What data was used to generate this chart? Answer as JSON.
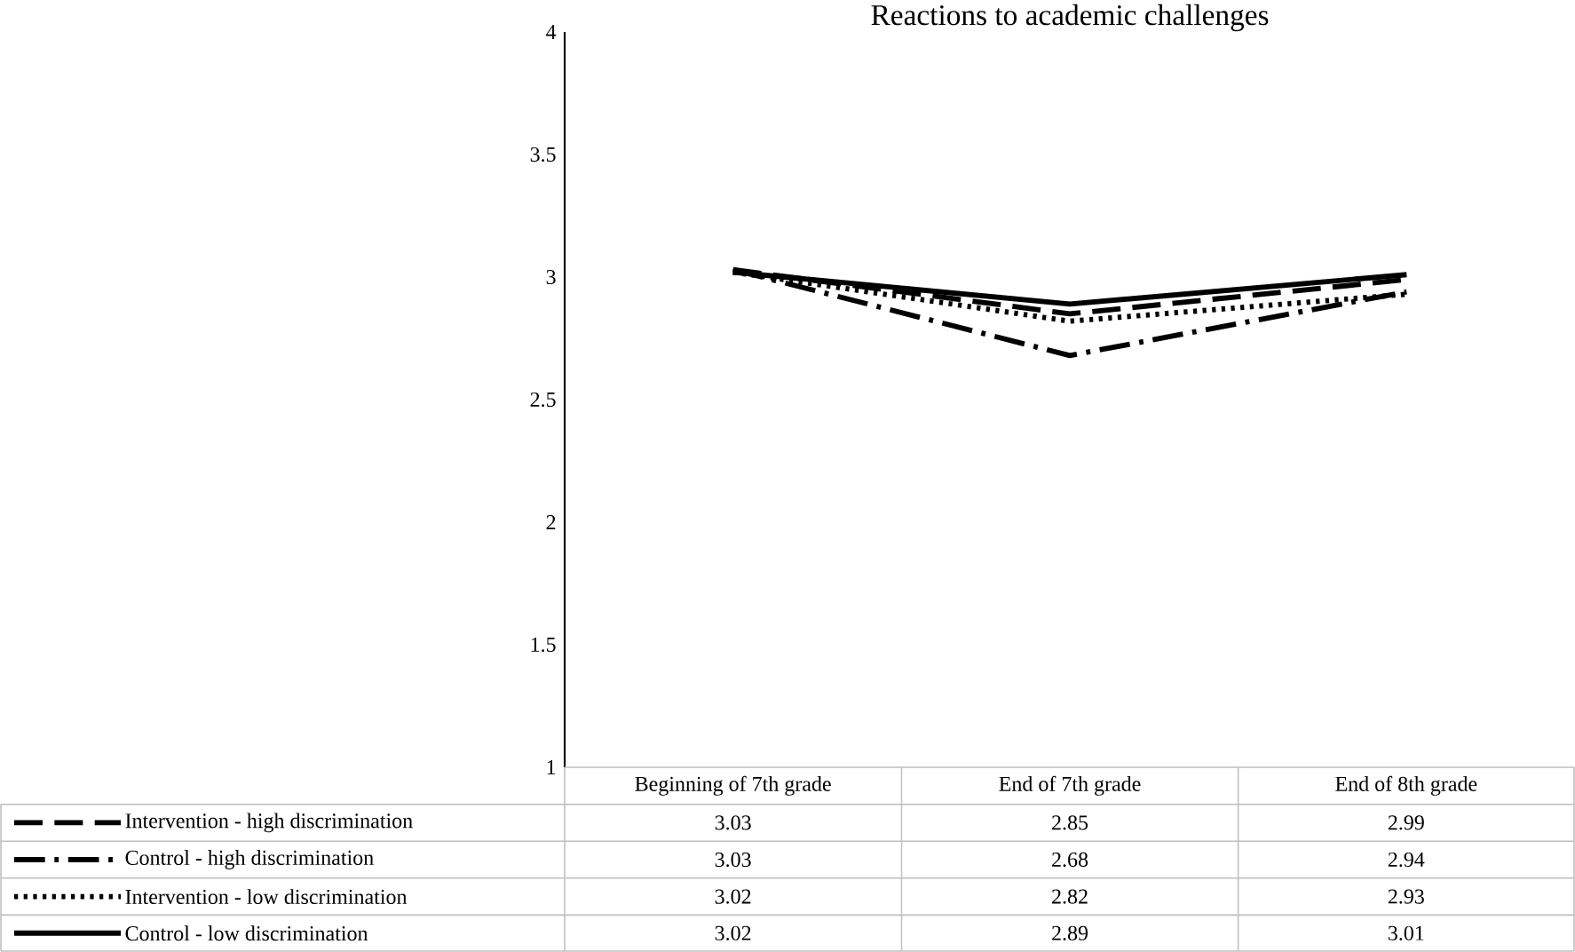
{
  "chart_data": {
    "type": "line",
    "title": "Reactions to academic challenges",
    "categories": [
      "Beginning of 7th grade",
      "End of 7th grade",
      "End of 8th grade"
    ],
    "series": [
      {
        "name": "Intervention - high discrimination",
        "color": "#000000",
        "line_style": "dashed",
        "values": [
          3.03,
          2.85,
          2.99
        ]
      },
      {
        "name": "Control - high discrimination",
        "color": "#000000",
        "line_style": "dashdot",
        "values": [
          3.03,
          2.68,
          2.94
        ]
      },
      {
        "name": "Intervention - low discrimination",
        "color": "#000000",
        "line_style": "dotted",
        "values": [
          3.02,
          2.82,
          2.93
        ]
      },
      {
        "name": "Control - low discrimination",
        "color": "#000000",
        "line_style": "solid",
        "values": [
          3.02,
          2.89,
          3.01
        ]
      }
    ],
    "ylim": [
      1,
      4
    ],
    "yticks": [
      1,
      1.5,
      2,
      2.5,
      3,
      3.5,
      4
    ],
    "data_labels": true,
    "legend": "bottom",
    "grid": false
  }
}
